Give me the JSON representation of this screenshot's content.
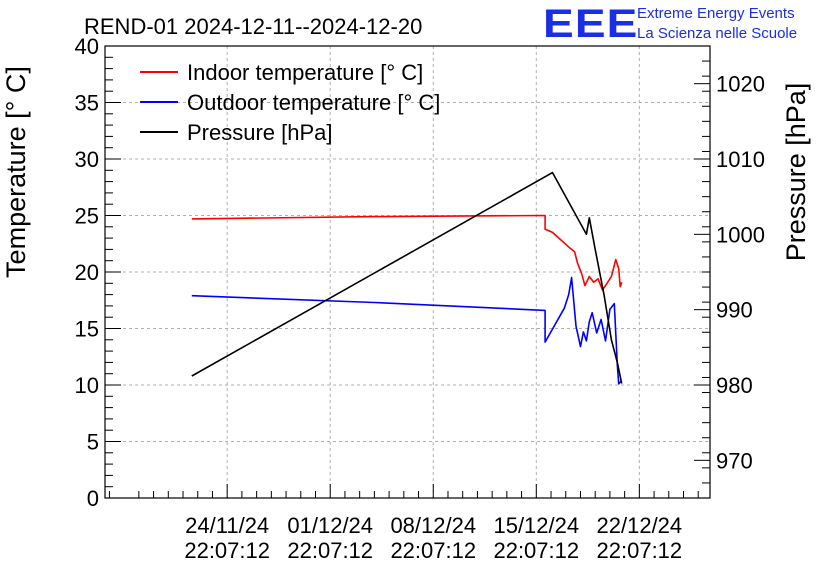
{
  "chart_data": {
    "type": "line",
    "title": "REND-01 2024-12-11--2024-12-20",
    "ylabel": "Temperature [° C]",
    "y2label": "Pressure [hPa]",
    "ylim": [
      0,
      40
    ],
    "y2lim": [
      965,
      1025
    ],
    "xlim_days": [
      -8.3,
      32.8
    ],
    "x_unit": "days since 24/11/24 22:07:12",
    "grid": true,
    "legend_position": "top-left",
    "x_ticks": [
      {
        "day": 0,
        "line1": "24/11/24",
        "line2": "22:07:12"
      },
      {
        "day": 7,
        "line1": "01/12/24",
        "line2": "22:07:12"
      },
      {
        "day": 14,
        "line1": "08/12/24",
        "line2": "22:07:12"
      },
      {
        "day": 21,
        "line1": "15/12/24",
        "line2": "22:07:12"
      },
      {
        "day": 28,
        "line1": "22/12/24",
        "line2": "22:07:12"
      }
    ],
    "y_ticks": [
      0,
      5,
      10,
      15,
      20,
      25,
      30,
      35,
      40
    ],
    "y2_ticks": [
      970,
      980,
      990,
      1000,
      1010,
      1020
    ],
    "series": [
      {
        "name": "Indoor temperature [° C]",
        "axis": "left",
        "color": "#ff0000",
        "x": [
          -2.4,
          10,
          21.6,
          21.6,
          22.1,
          23.3,
          23.6,
          23.8,
          24.1,
          24.3,
          24.6,
          24.9,
          25.2,
          25.5,
          25.8,
          26.1,
          26.4,
          26.6,
          26.7,
          26.8
        ],
        "y": [
          24.7,
          24.9,
          25.0,
          23.8,
          23.5,
          22.1,
          21.8,
          20.8,
          19.8,
          18.8,
          19.6,
          19.1,
          19.4,
          18.4,
          19.0,
          19.6,
          21.1,
          20.3,
          18.7,
          19.1
        ]
      },
      {
        "name": "Outdoor temperature [° C]",
        "axis": "left",
        "color": "#0000ff",
        "x": [
          -2.4,
          10,
          21.6,
          21.6,
          22.9,
          23.2,
          23.4,
          23.7,
          24.0,
          24.2,
          24.4,
          24.6,
          24.8,
          25.1,
          25.4,
          25.7,
          26.0,
          26.3,
          26.5,
          26.6,
          26.8
        ],
        "y": [
          17.9,
          17.3,
          16.6,
          13.8,
          16.8,
          18.0,
          19.5,
          15.2,
          13.4,
          14.7,
          13.9,
          15.6,
          16.4,
          14.6,
          15.8,
          13.9,
          16.7,
          17.2,
          11.8,
          10.1,
          10.4
        ]
      },
      {
        "name": "Pressure [hPa]",
        "axis": "right",
        "color": "#000000",
        "x": [
          -2.4,
          22.1,
          24.4,
          24.6,
          25.0,
          25.6,
          26.1,
          26.5,
          26.8
        ],
        "y": [
          981.2,
          1008.2,
          1000.0,
          1002.2,
          998.0,
          992.0,
          986.0,
          983.0,
          980.2
        ]
      }
    ]
  },
  "logo": {
    "mark": "EEE",
    "line1": "Extreme Energy Events",
    "line2": "La Scienza nelle Scuole"
  }
}
